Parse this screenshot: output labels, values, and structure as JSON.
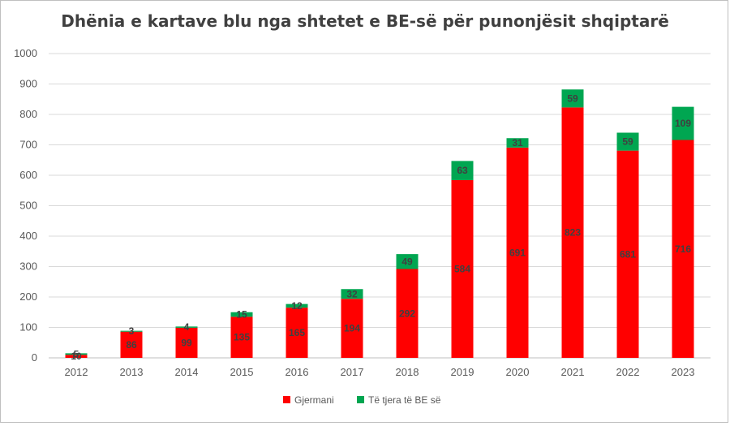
{
  "chart_data": {
    "type": "bar",
    "stacked": true,
    "title": "Dhënia e kartave blu nga shtetet e BE-së për punonjësit shqiptarë",
    "categories": [
      "2012",
      "2013",
      "2014",
      "2015",
      "2016",
      "2017",
      "2018",
      "2019",
      "2020",
      "2021",
      "2022",
      "2023"
    ],
    "series": [
      {
        "name": "Gjermani",
        "color": "#ff0000",
        "values": [
          10,
          86,
          99,
          135,
          165,
          194,
          292,
          584,
          691,
          823,
          681,
          716
        ]
      },
      {
        "name": "Të tjera të BE së",
        "color": "#00a651",
        "values": [
          5,
          3,
          4,
          15,
          12,
          32,
          49,
          63,
          31,
          59,
          59,
          109
        ]
      }
    ],
    "ylim": [
      0,
      1000
    ],
    "yticks": [
      0,
      100,
      200,
      300,
      400,
      500,
      600,
      700,
      800,
      900,
      1000
    ],
    "grid": true,
    "legend": "bottom"
  }
}
